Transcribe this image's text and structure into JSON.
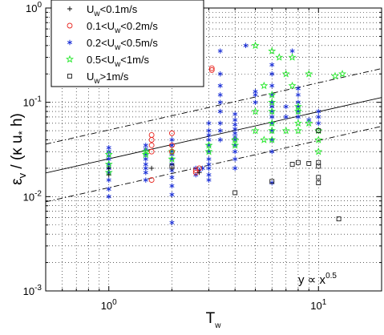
{
  "chart_data": {
    "type": "scatter",
    "xscale": "log",
    "yscale": "log",
    "xlim": [
      0.5,
      20
    ],
    "ylim": [
      0.001,
      1
    ],
    "grid": true,
    "xlabel": {
      "base": "T",
      "sub": "w"
    },
    "ylabel": {
      "base": "ε",
      "sub1": "v",
      "mid": " / (κ u",
      "sub2": "*",
      "end": " h)"
    },
    "xticks": [
      {
        "value": 1,
        "base": "10",
        "exp": "0"
      },
      {
        "value": 10,
        "base": "10",
        "exp": "1"
      }
    ],
    "yticks": [
      {
        "value": 0.001,
        "base": "10",
        "exp": "-3"
      },
      {
        "value": 0.01,
        "base": "10",
        "exp": "-2"
      },
      {
        "value": 0.1,
        "base": "10",
        "exp": "-1"
      },
      {
        "value": 1,
        "base": "10",
        "exp": "0"
      }
    ],
    "annotation": {
      "base": "y ∝ x",
      "exp": "0.5"
    },
    "lines": [
      {
        "style": "solid",
        "x": [
          0.5,
          20
        ],
        "y": [
          0.0178,
          0.1125
        ]
      },
      {
        "style": "dash-dot",
        "x": [
          0.5,
          20
        ],
        "y": [
          0.036,
          0.228
        ]
      },
      {
        "style": "dash-dot",
        "x": [
          0.5,
          20
        ],
        "y": [
          0.0088,
          0.0557
        ]
      }
    ],
    "legend_position": "top-left",
    "series": [
      {
        "legend": {
          "pre": "U",
          "sub": "w",
          "post": "<0.1m/s"
        },
        "marker": "plus",
        "color": "#000000",
        "x": [
          1.0,
          1.0,
          1.6,
          2.0,
          2.7
        ],
        "y": [
          0.02,
          0.017,
          0.02,
          0.02,
          0.018
        ]
      },
      {
        "legend": {
          "pre": "0.1<U",
          "sub": "w",
          "post": "<0.2m/s"
        },
        "marker": "circle",
        "color": "#e8251f",
        "x": [
          1.6,
          1.6,
          1.6,
          1.6,
          1.6,
          2.0,
          2.0,
          2.0,
          2.6,
          2.6,
          2.7,
          3.1,
          3.1
        ],
        "y": [
          0.045,
          0.04,
          0.035,
          0.03,
          0.015,
          0.047,
          0.035,
          0.03,
          0.019,
          0.018,
          0.02,
          0.23,
          0.22
        ]
      },
      {
        "legend": {
          "pre": "0.2<U",
          "sub": "w",
          "post": "<0.5m/s"
        },
        "marker": "asterisk",
        "color": "#1a2fd6",
        "x": [
          1.0,
          1.0,
          1.0,
          1.0,
          1.0,
          1.0,
          1.0,
          1.0,
          1.0,
          1.0,
          1.5,
          1.5,
          1.5,
          1.5,
          1.5,
          1.5,
          1.5,
          1.5,
          2.0,
          2.0,
          2.0,
          2.0,
          2.0,
          2.0,
          2.0,
          2.0,
          2.0,
          2.0,
          2.0,
          2.6,
          2.6,
          2.7,
          2.8,
          3.0,
          3.0,
          3.0,
          3.0,
          3.0,
          3.0,
          3.0,
          3.0,
          3.0,
          3.0,
          3.0,
          3.4,
          3.4,
          3.4,
          3.4,
          3.4,
          3.4,
          3.4,
          3.4,
          3.4,
          4.0,
          4.0,
          4.0,
          4.0,
          4.0,
          4.0,
          4.0,
          4.0,
          4.0,
          4.0,
          4.0,
          4.5,
          5.0,
          5.0,
          5.0,
          6.0,
          6.0,
          6.0,
          6.0,
          6.0,
          6.0,
          6.0,
          6.0,
          6.0,
          6.0,
          6.0,
          6.0,
          6.0,
          7.0,
          7.0,
          7.5,
          8.0,
          8.0,
          8.0,
          8.0,
          8.0,
          8.0,
          9.0,
          10.0,
          10.0,
          10.0
        ],
        "y": [
          0.033,
          0.03,
          0.027,
          0.025,
          0.022,
          0.02,
          0.018,
          0.015,
          0.012,
          0.01,
          0.035,
          0.032,
          0.028,
          0.025,
          0.022,
          0.02,
          0.018,
          0.015,
          0.04,
          0.035,
          0.03,
          0.028,
          0.025,
          0.022,
          0.019,
          0.016,
          0.013,
          0.0105,
          0.0053,
          0.02,
          0.017,
          0.019,
          0.02,
          0.06,
          0.05,
          0.045,
          0.04,
          0.035,
          0.03,
          0.025,
          0.022,
          0.02,
          0.017,
          0.015,
          0.35,
          0.2,
          0.15,
          0.12,
          0.1,
          0.08,
          0.06,
          0.05,
          0.04,
          0.075,
          0.065,
          0.058,
          0.052,
          0.047,
          0.043,
          0.04,
          0.035,
          0.03,
          0.025,
          0.02,
          0.4,
          0.13,
          0.12,
          0.1,
          0.25,
          0.2,
          0.15,
          0.12,
          0.1,
          0.09,
          0.08,
          0.07,
          0.06,
          0.05,
          0.04,
          0.03,
          0.014,
          0.09,
          0.07,
          0.35,
          0.14,
          0.12,
          0.1,
          0.09,
          0.08,
          0.07,
          0.065,
          0.08,
          0.07,
          0.06
        ]
      },
      {
        "legend": {
          "pre": "0.5<U",
          "sub": "w",
          "post": "<1m/s"
        },
        "marker": "star",
        "color": "#25e82b",
        "x": [
          1.0,
          1.0,
          1.0,
          1.5,
          1.5,
          2.0,
          2.0,
          3.0,
          3.0,
          4.0,
          4.0,
          5.0,
          5.0,
          5.0,
          5.5,
          5.5,
          6.0,
          6.0,
          6.0,
          6.0,
          6.0,
          6.0,
          6.0,
          6.5,
          7.0,
          7.0,
          7.5,
          7.5,
          8.0,
          8.0,
          8.0,
          8.0,
          9.0,
          9.0,
          10.0,
          10.0,
          10.0,
          12.0,
          13.0
        ],
        "y": [
          0.028,
          0.022,
          0.018,
          0.03,
          0.028,
          0.03,
          0.025,
          0.035,
          0.03,
          0.04,
          0.035,
          0.4,
          0.08,
          0.05,
          0.15,
          0.04,
          0.35,
          0.12,
          0.1,
          0.08,
          0.06,
          0.05,
          0.04,
          0.3,
          0.2,
          0.05,
          0.3,
          0.15,
          0.09,
          0.08,
          0.06,
          0.05,
          0.2,
          0.06,
          0.05,
          0.04,
          0.03,
          0.19,
          0.2
        ]
      },
      {
        "legend": {
          "pre": "U",
          "sub": "w",
          "post": ">1m/s"
        },
        "marker": "square",
        "color": "#000000",
        "x": [
          2.0,
          4.0,
          6.0,
          7.5,
          8.0,
          9.0,
          10.0,
          10.0,
          10.0,
          10.0,
          10.0,
          12.5
        ],
        "y": [
          0.021,
          0.011,
          0.0145,
          0.022,
          0.023,
          0.0225,
          0.05,
          0.023,
          0.021,
          0.016,
          0.014,
          0.0058
        ]
      }
    ]
  }
}
